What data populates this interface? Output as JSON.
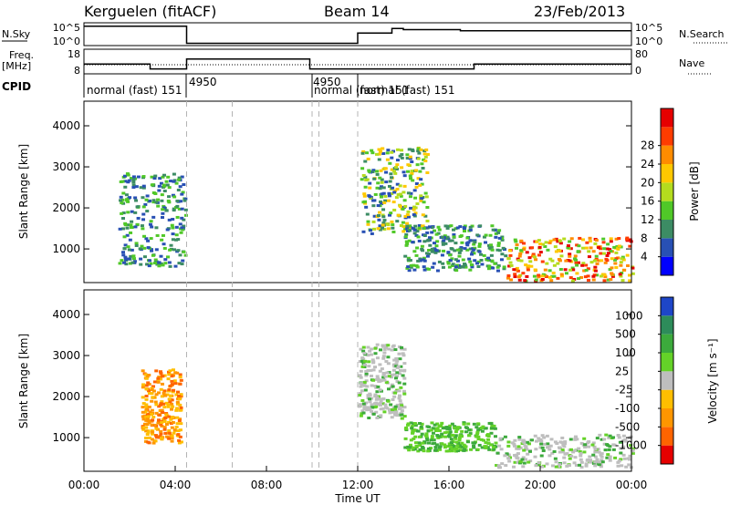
{
  "header": {
    "station": "Kerguelen (fitACF)",
    "beam": "Beam 14",
    "date": "23/Feb/2013"
  },
  "side_labels": {
    "nsky": "N.Sky",
    "nsearch": "N.Search",
    "freq": "Freq.",
    "freq_unit": "[MHz]",
    "nave": "Nave",
    "cpid": "CPID"
  },
  "colors": {
    "axis": "#000000",
    "dashed": "#b4b4b4",
    "background": "#ffffff"
  },
  "chart_data": [
    {
      "type": "line",
      "id": "noise",
      "ylabel_left": "N.Sky",
      "ylabel_right": "N.Search",
      "left_ticks": [
        "10^5",
        "10^0"
      ],
      "right_ticks": [
        "10^5",
        "10^0"
      ],
      "x_hours": [
        0,
        4.45,
        4.5,
        6.5,
        9.9,
        10.7,
        11.3,
        12.0,
        13.5,
        14.0,
        16.5,
        20.0,
        24.0
      ],
      "n_sky_level": [
        0.85,
        0.85,
        0.1,
        0.1,
        0.1,
        0.1,
        0.1,
        0.55,
        0.75,
        0.7,
        0.65,
        0.65,
        0.65
      ]
    },
    {
      "type": "line",
      "id": "frequency",
      "ylabel_left": "Freq. [MHz]",
      "ylabel_right": "Nave",
      "left_ticks": [
        "18",
        "8"
      ],
      "right_ticks": [
        "80",
        "0"
      ],
      "x_hours": [
        0,
        2.8,
        2.9,
        4.45,
        4.5,
        6.5,
        9.9,
        10.7,
        11.3,
        12.0,
        17.0,
        17.1,
        24.0
      ],
      "freq_mhz": [
        12,
        12,
        10,
        10,
        14,
        14,
        10,
        10,
        10,
        10,
        10,
        12,
        12
      ]
    },
    {
      "type": "table",
      "id": "cpid",
      "ylabel": "CPID",
      "segments": [
        {
          "start_hour": 0.0,
          "label": "normal (fast) 151"
        },
        {
          "start_hour": 4.5,
          "label": "4950"
        },
        {
          "start_hour": 10.0,
          "label": "4950"
        },
        {
          "start_hour": 10.3,
          "label": "normal (fast) 151"
        },
        {
          "start_hour": 12.0,
          "label": "normal (fast) 151"
        }
      ]
    },
    {
      "type": "heatmap",
      "id": "power",
      "xlabel": "",
      "ylabel": "Slant Range [km]",
      "ylim": [
        180,
        4600
      ],
      "y_ticks": [
        1000,
        2000,
        3000,
        4000
      ],
      "colorbar_label": "Power [dB]",
      "colorbar_ticks": [
        4,
        8,
        12,
        16,
        20,
        24,
        28
      ],
      "colorbar_colors": [
        "#0000ff",
        "#2850b4",
        "#3c8c64",
        "#50c828",
        "#b4dc1e",
        "#ffc800",
        "#ff8c00",
        "#ff3c00",
        "#e60000"
      ],
      "echo_regions": [
        {
          "hour_start": 1.5,
          "hour_end": 4.4,
          "range_start": 600,
          "range_end": 2900,
          "level": "low-medium"
        },
        {
          "hour_start": 12.1,
          "hour_end": 15.0,
          "range_start": 1400,
          "range_end": 3500,
          "level": "medium-high"
        },
        {
          "hour_start": 14.0,
          "hour_end": 18.5,
          "range_start": 500,
          "range_end": 1600,
          "level": "medium"
        },
        {
          "hour_start": 18.5,
          "hour_end": 24.0,
          "range_start": 250,
          "range_end": 1300,
          "level": "high"
        }
      ]
    },
    {
      "type": "heatmap",
      "id": "velocity",
      "xlabel": "Time UT",
      "ylabel": "Slant Range [km]",
      "ylim": [
        180,
        4600
      ],
      "y_ticks": [
        1000,
        2000,
        3000,
        4000
      ],
      "x_ticks": [
        "00:00",
        "04:00",
        "08:00",
        "12:00",
        "16:00",
        "20:00",
        "00:00"
      ],
      "colorbar_label": "Velocity [m s⁻¹]",
      "colorbar_ticks": [
        "1000",
        "500",
        "100",
        "25",
        "-25",
        "-100",
        "-500",
        "-1000"
      ],
      "colorbar_colors": [
        "#1e46c8",
        "#2d8c5a",
        "#3caa3c",
        "#64d228",
        "#bebebe",
        "#ffbe00",
        "#ff9600",
        "#ff6400",
        "#e60000"
      ],
      "echo_regions": [
        {
          "hour_start": 2.5,
          "hour_end": 4.2,
          "range_start": 900,
          "range_end": 2700,
          "level": "negative"
        },
        {
          "hour_start": 12.0,
          "hour_end": 14.0,
          "range_start": 1500,
          "range_end": 3300,
          "level": "near-zero/positive"
        },
        {
          "hour_start": 14.0,
          "hour_end": 18.0,
          "range_start": 700,
          "range_end": 1400,
          "level": "positive"
        },
        {
          "hour_start": 18.0,
          "hour_end": 24.0,
          "range_start": 300,
          "range_end": 1100,
          "level": "positive/near-zero"
        }
      ]
    }
  ]
}
